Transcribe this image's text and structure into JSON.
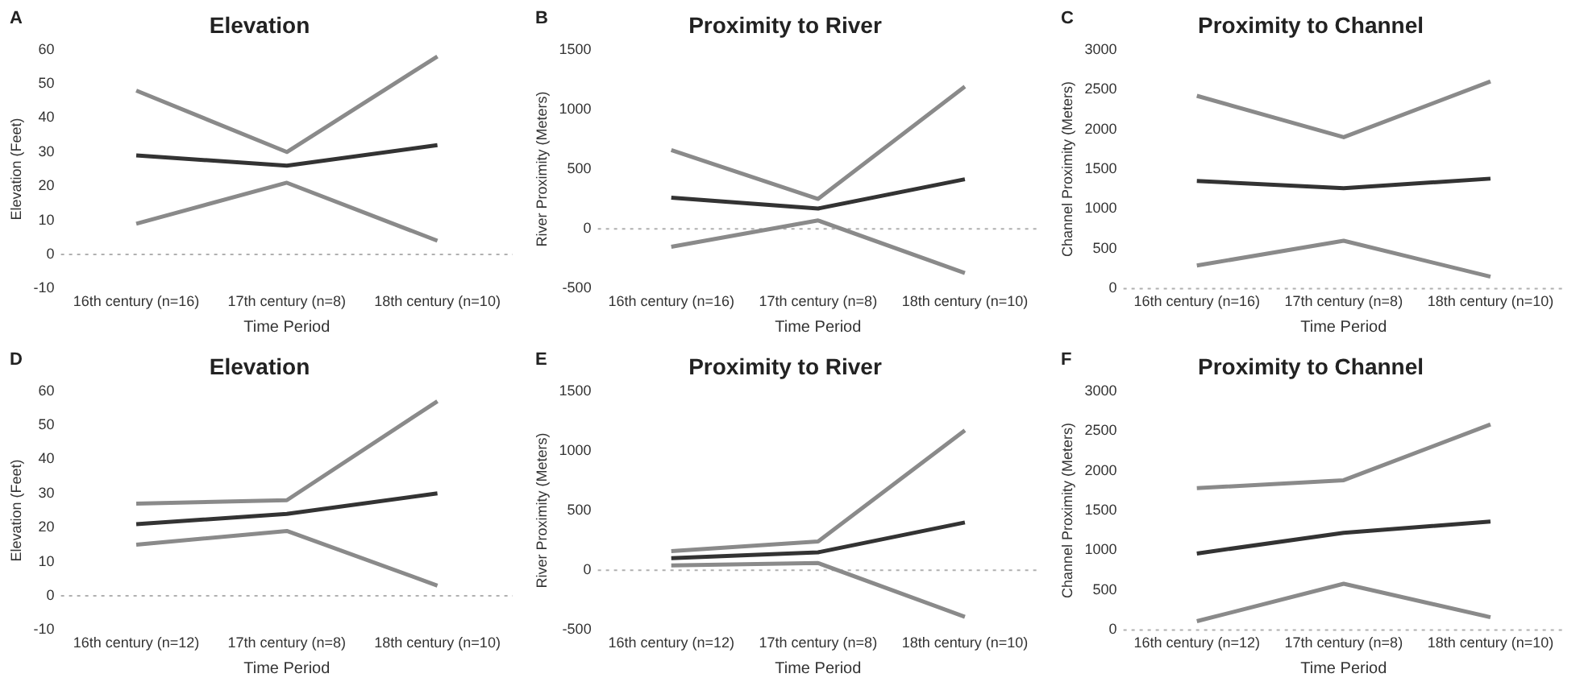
{
  "chart_data": [
    {
      "type": "line",
      "title": "Elevation",
      "xlabel": "Time Period",
      "ylabel": "Elevation (Feet)",
      "annotations": [
        "A"
      ],
      "categories": [
        "16th century (n=16)",
        "17th century (n=8)",
        "18th century (n=10)"
      ],
      "ylim": [
        -10,
        60
      ],
      "yticks": [
        -10,
        0,
        10,
        20,
        30,
        40,
        50,
        60
      ],
      "grid": false,
      "legend": false,
      "marker": "none",
      "ref_lines": [
        {
          "axis": "y",
          "value": 0,
          "color": "#b0b0b0",
          "line_style": "dotted"
        }
      ],
      "series": [
        {
          "color": "#8a8a8a",
          "values": [
            48,
            30,
            58
          ]
        },
        {
          "color": "#333333",
          "values": [
            29,
            26,
            32
          ]
        },
        {
          "color": "#8a8a8a",
          "values": [
            9,
            21,
            4
          ]
        }
      ]
    },
    {
      "type": "line",
      "title": "Proximity to River",
      "xlabel": "Time Period",
      "ylabel": "River Proximity (Meters)",
      "annotations": [
        "B"
      ],
      "categories": [
        "16th century (n=16)",
        "17th century (n=8)",
        "18th century (n=10)"
      ],
      "ylim": [
        -500,
        1500
      ],
      "yticks": [
        -500,
        0,
        500,
        1000,
        1500
      ],
      "grid": false,
      "legend": false,
      "marker": "none",
      "ref_lines": [
        {
          "axis": "y",
          "value": 0,
          "color": "#b0b0b0",
          "line_style": "dotted"
        }
      ],
      "series": [
        {
          "color": "#8a8a8a",
          "values": [
            660,
            250,
            1190
          ]
        },
        {
          "color": "#333333",
          "values": [
            260,
            170,
            415
          ]
        },
        {
          "color": "#8a8a8a",
          "values": [
            -150,
            70,
            -370
          ]
        }
      ]
    },
    {
      "type": "line",
      "title": "Proximity to Channel",
      "xlabel": "Time Period",
      "ylabel": "Channel Proximity (Meters)",
      "annotations": [
        "C"
      ],
      "categories": [
        "16th century (n=16)",
        "17th century (n=8)",
        "18th century (n=10)"
      ],
      "ylim": [
        0,
        3000
      ],
      "yticks": [
        0,
        500,
        1000,
        1500,
        2000,
        2500,
        3000
      ],
      "grid": false,
      "legend": false,
      "marker": "none",
      "ref_lines": [
        {
          "axis": "y",
          "value": 0,
          "color": "#b0b0b0",
          "line_style": "dotted"
        }
      ],
      "series": [
        {
          "color": "#8a8a8a",
          "values": [
            2420,
            1900,
            2600
          ]
        },
        {
          "color": "#333333",
          "values": [
            1350,
            1260,
            1380
          ]
        },
        {
          "color": "#8a8a8a",
          "values": [
            290,
            600,
            150
          ]
        }
      ]
    },
    {
      "type": "line",
      "title": "Elevation",
      "xlabel": "Time Period",
      "ylabel": "Elevation (Feet)",
      "annotations": [
        "D"
      ],
      "categories": [
        "16th century (n=12)",
        "17th century (n=8)",
        "18th century (n=10)"
      ],
      "ylim": [
        -10,
        60
      ],
      "yticks": [
        -10,
        0,
        10,
        20,
        30,
        40,
        50,
        60
      ],
      "grid": false,
      "legend": false,
      "marker": "none",
      "ref_lines": [
        {
          "axis": "y",
          "value": 0,
          "color": "#b0b0b0",
          "line_style": "dotted"
        }
      ],
      "series": [
        {
          "color": "#8a8a8a",
          "values": [
            27,
            28,
            57
          ]
        },
        {
          "color": "#333333",
          "values": [
            21,
            24,
            30
          ]
        },
        {
          "color": "#8a8a8a",
          "values": [
            15,
            19,
            3
          ]
        }
      ]
    },
    {
      "type": "line",
      "title": "Proximity to River",
      "xlabel": "Time Period",
      "ylabel": "River Proximity (Meters)",
      "annotations": [
        "E"
      ],
      "categories": [
        "16th century (n=12)",
        "17th century (n=8)",
        "18th century (n=10)"
      ],
      "ylim": [
        -500,
        1500
      ],
      "yticks": [
        -500,
        0,
        500,
        1000,
        1500
      ],
      "grid": false,
      "legend": false,
      "marker": "none",
      "ref_lines": [
        {
          "axis": "y",
          "value": 0,
          "color": "#b0b0b0",
          "line_style": "dotted"
        }
      ],
      "series": [
        {
          "color": "#8a8a8a",
          "values": [
            160,
            240,
            1170
          ]
        },
        {
          "color": "#333333",
          "values": [
            100,
            150,
            400
          ]
        },
        {
          "color": "#8a8a8a",
          "values": [
            40,
            60,
            -390
          ]
        }
      ]
    },
    {
      "type": "line",
      "title": "Proximity to Channel",
      "xlabel": "Time Period",
      "ylabel": "Channel Proximity (Meters)",
      "annotations": [
        "F"
      ],
      "categories": [
        "16th century (n=12)",
        "17th century (n=8)",
        "18th century (n=10)"
      ],
      "ylim": [
        0,
        3000
      ],
      "yticks": [
        0,
        500,
        1000,
        1500,
        2000,
        2500,
        3000
      ],
      "grid": false,
      "legend": false,
      "marker": "none",
      "ref_lines": [
        {
          "axis": "y",
          "value": 0,
          "color": "#b0b0b0",
          "line_style": "dotted"
        }
      ],
      "series": [
        {
          "color": "#8a8a8a",
          "values": [
            1780,
            1880,
            2580
          ]
        },
        {
          "color": "#333333",
          "values": [
            960,
            1220,
            1360
          ]
        },
        {
          "color": "#8a8a8a",
          "values": [
            110,
            580,
            160
          ]
        }
      ]
    }
  ]
}
